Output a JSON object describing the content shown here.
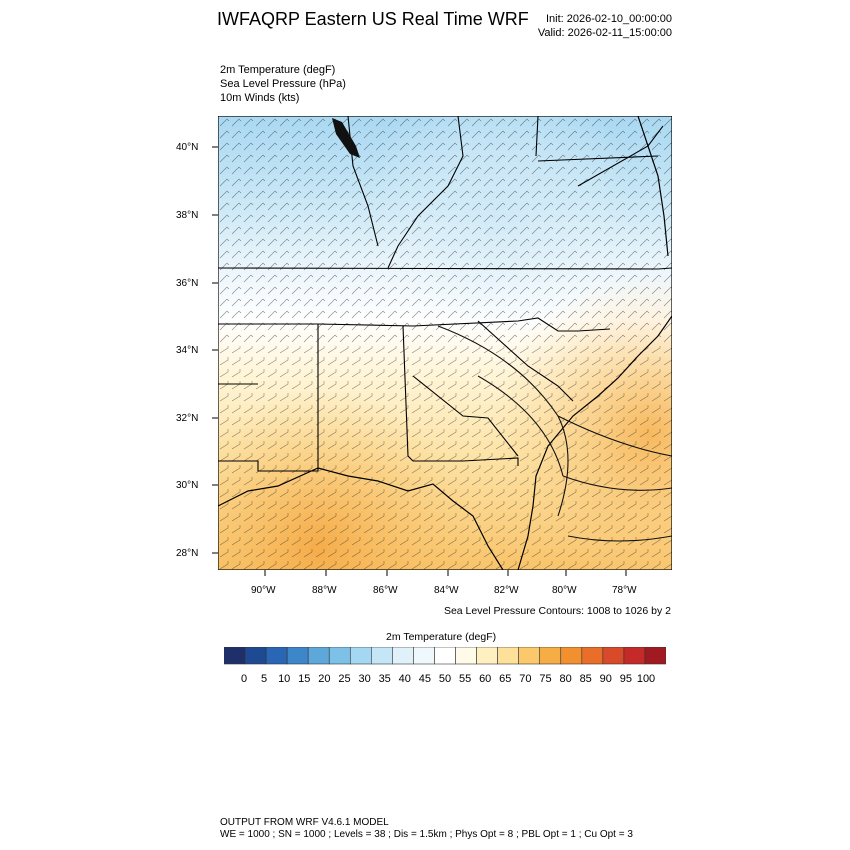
{
  "header": {
    "title": "IWFAQRP Eastern US Real Time WRF",
    "init": "Init: 2026-02-10_00:00:00",
    "valid": "Valid: 2026-02-11_15:00:00"
  },
  "fields": [
    "2m Temperature   (degF)",
    "Sea Level Pressure   (hPa)",
    "10m Winds   (kts)"
  ],
  "map": {
    "lat_labels": [
      "40°N",
      "38°N",
      "36°N",
      "34°N",
      "32°N",
      "30°N",
      "28°N"
    ],
    "lon_labels": [
      "90°W",
      "88°W",
      "86°W",
      "84°W",
      "82°W",
      "80°W",
      "78°W"
    ],
    "contour_note": "Sea Level Pressure Contours: 1008 to 1026 by 2"
  },
  "colorbar": {
    "title": "2m Temperature  (degF)",
    "ticks": [
      "0",
      "5",
      "10",
      "15",
      "20",
      "25",
      "30",
      "35",
      "40",
      "45",
      "50",
      "55",
      "60",
      "65",
      "70",
      "75",
      "80",
      "85",
      "90",
      "95",
      "100"
    ],
    "colors": [
      "#1f2f6b",
      "#1e4a94",
      "#2a66b6",
      "#3d86c9",
      "#5ea7da",
      "#7dc1e8",
      "#a4d8f2",
      "#c5e6f6",
      "#e0f1fa",
      "#eff8fc",
      "#ffffff",
      "#fffbe8",
      "#fff0c2",
      "#fde09a",
      "#fbc86b",
      "#f6ad45",
      "#f2902f",
      "#e86e2a",
      "#d84a2a",
      "#c42a28",
      "#a11a22"
    ]
  },
  "footer": {
    "line1": "OUTPUT FROM WRF V4.6.1 MODEL",
    "line2": "WE = 1000 ; SN = 1000 ; Levels = 38 ; Dis = 1.5km ; Phys Opt = 8 ; PBL Opt = 1 ; Cu Opt = 3"
  }
}
